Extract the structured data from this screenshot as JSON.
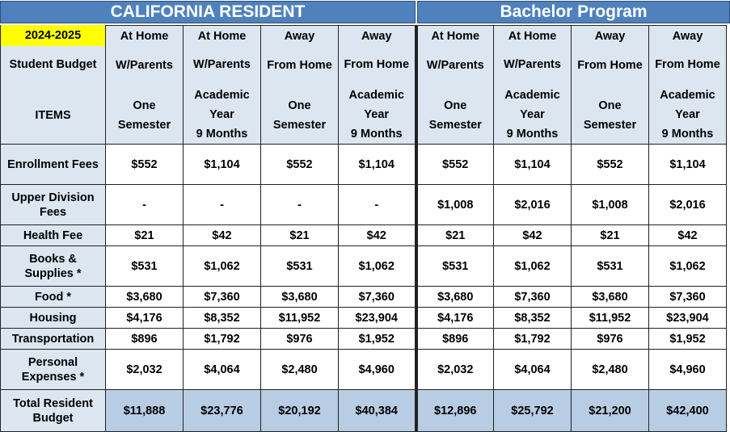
{
  "banners": {
    "left": "CALIFORNIA RESIDENT",
    "right": "Bachelor Program"
  },
  "header": {
    "year": "2024-2025",
    "student_budget": "Student Budget",
    "items": "ITEMS",
    "columns": [
      {
        "l1": "At Home",
        "l2": "W/Parents",
        "l3a": "One",
        "l3b": "Semester",
        "l3c": ""
      },
      {
        "l1": "At Home",
        "l2": "W/Parents",
        "l3a": "Academic",
        "l3b": "Year",
        "l3c": "9 Months"
      },
      {
        "l1": "Away",
        "l2": "From Home",
        "l3a": "One",
        "l3b": "Semester",
        "l3c": ""
      },
      {
        "l1": "Away",
        "l2": "From Home",
        "l3a": "Academic",
        "l3b": "Year",
        "l3c": "9 Months"
      },
      {
        "l1": "At Home",
        "l2": "W/Parents",
        "l3a": "One",
        "l3b": "Semester",
        "l3c": ""
      },
      {
        "l1": "At Home",
        "l2": "W/Parents",
        "l3a": "Academic",
        "l3b": "Year",
        "l3c": "9 Months"
      },
      {
        "l1": "Away",
        "l2": "From Home",
        "l3a": "One",
        "l3b": "Semester",
        "l3c": ""
      },
      {
        "l1": "Away",
        "l2": "From Home",
        "l3a": "Academic",
        "l3b": "Year",
        "l3c": "9 Months"
      }
    ]
  },
  "rows": [
    {
      "label": "Enrollment Fees",
      "values": [
        "$552",
        "$1,104",
        "$552",
        "$1,104",
        "$552",
        "$1,104",
        "$552",
        "$1,104"
      ]
    },
    {
      "label": "Upper Division Fees",
      "values": [
        "-",
        "-",
        "-",
        "-",
        "$1,008",
        "$2,016",
        "$1,008",
        "$2,016"
      ]
    },
    {
      "label": "Health Fee",
      "values": [
        "$21",
        "$42",
        "$21",
        "$42",
        "$21",
        "$42",
        "$21",
        "$42"
      ]
    },
    {
      "label": "Books & Supplies *",
      "values": [
        "$531",
        "$1,062",
        "$531",
        "$1,062",
        "$531",
        "$1,062",
        "$531",
        "$1,062"
      ]
    },
    {
      "label": "Food *",
      "values": [
        "$3,680",
        "$7,360",
        "$3,680",
        "$7,360",
        "$3,680",
        "$7,360",
        "$3,680",
        "$7,360"
      ]
    },
    {
      "label": "Housing",
      "values": [
        "$4,176",
        "$8,352",
        "$11,952",
        "$23,904",
        "$4,176",
        "$8,352",
        "$11,952",
        "$23,904"
      ]
    },
    {
      "label": "Transportation",
      "values": [
        "$896",
        "$1,792",
        "$976",
        "$1,952",
        "$896",
        "$1,792",
        "$976",
        "$1,952"
      ]
    },
    {
      "label": "Personal Expenses *",
      "values": [
        "$2,032",
        "$4,064",
        "$2,480",
        "$4,960",
        "$2,032",
        "$4,064",
        "$2,480",
        "$4,960"
      ]
    }
  ],
  "total": {
    "label": "Total Resident Budget",
    "values": [
      "$11,888",
      "$23,776",
      "$20,192",
      "$40,384",
      "$12,896",
      "$25,792",
      "$21,200",
      "$42,400"
    ]
  }
}
